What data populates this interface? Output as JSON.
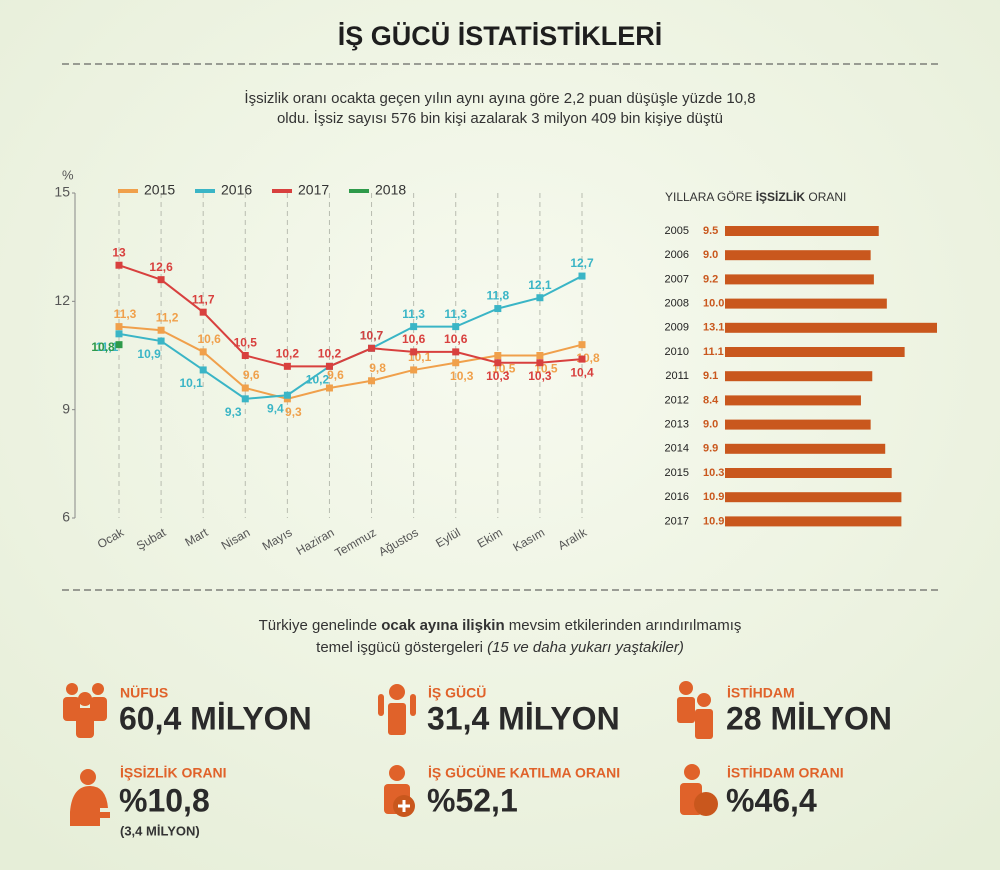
{
  "header": {
    "title": "İŞ GÜCÜ İSTATİSTİKLERİ",
    "subtitle_lines": [
      "İşsizlik oranı ocakta geçen yılın aynı ayına göre 2,2 puan düşüşle yüzde 10,8",
      "oldu. İşsiz sayısı 576 bin kişi azalarak 3 milyon 409 bin kişiye düştü"
    ]
  },
  "chart_data": [
    {
      "type": "line",
      "ylabel": "%",
      "categories": [
        "Ocak",
        "Şubat",
        "Mart",
        "Nisan",
        "Mayıs",
        "Haziran",
        "Temmuz",
        "Ağustos",
        "Eylül",
        "Ekim",
        "Kasım",
        "Aralık"
      ],
      "ylim": [
        6,
        15
      ],
      "yticks": [
        6,
        9,
        12,
        15
      ],
      "grid": true,
      "legend": "top",
      "series": [
        {
          "name": "2015",
          "color": "#f0a04b",
          "values": [
            11.3,
            11.2,
            10.6,
            9.6,
            9.3,
            9.6,
            9.8,
            10.1,
            10.3,
            10.5,
            10.5,
            10.8
          ],
          "value_labels": [
            "11,3",
            "11,2",
            "10,6",
            "9,6",
            "9,3",
            "9,6",
            "9,8",
            "10,1",
            "10,3",
            "10,5",
            "10,5",
            "10,8"
          ]
        },
        {
          "name": "2016",
          "color": "#3ab5c6",
          "values": [
            11.1,
            10.9,
            10.1,
            9.3,
            9.4,
            10.2,
            10.7,
            11.3,
            11.3,
            11.8,
            12.1,
            12.7
          ],
          "value_labels": [
            "11,1",
            "10,9",
            "10,1",
            "9,3",
            "9,4",
            "10,2",
            "10,7",
            "11,3",
            "11,3",
            "11,8",
            "12,1",
            "12,7"
          ]
        },
        {
          "name": "2017",
          "color": "#d8403e",
          "values": [
            13,
            12.6,
            11.7,
            10.5,
            10.2,
            10.2,
            10.7,
            10.6,
            10.6,
            10.3,
            10.3,
            10.4
          ],
          "value_labels": [
            "13",
            "12,6",
            "11,7",
            "10,5",
            "10,2",
            "10,2",
            "10,7",
            "10,6",
            "10,6",
            "10,3",
            "10,3",
            "10,4"
          ]
        },
        {
          "name": "2018",
          "color": "#2e9a4a",
          "values": [
            10.8,
            null,
            null,
            null,
            null,
            null,
            null,
            null,
            null,
            null,
            null,
            null
          ],
          "value_labels": [
            "10,8",
            null,
            null,
            null,
            null,
            null,
            null,
            null,
            null,
            null,
            null,
            null
          ]
        }
      ]
    },
    {
      "type": "hbar",
      "title_parts": [
        "YILLARA GÖRE ",
        "İŞSİZLİK",
        " ORANI"
      ],
      "categories": [
        "2005",
        "2006",
        "2007",
        "2008",
        "2009",
        "2010",
        "2011",
        "2012",
        "2013",
        "2014",
        "2015",
        "2016",
        "2017"
      ],
      "values": [
        9.5,
        9.0,
        9.2,
        10.0,
        13.1,
        11.1,
        9.1,
        8.4,
        9.0,
        9.9,
        10.3,
        10.9,
        10.9
      ],
      "value_labels": [
        "9.5",
        "9.0",
        "9.2",
        "10.0",
        "13.1",
        "11.1",
        "9.1",
        "8.4",
        "9.0",
        "9.9",
        "10.3",
        "10.9",
        "10.9"
      ],
      "color": "#c9571d"
    }
  ],
  "intro": {
    "line1": [
      "Türkiye genelinde ",
      "ocak ayına ilişkin",
      " mevsim etkilerinden arındırılmamış"
    ],
    "line2": [
      "temel işgücü göstergeleri ",
      "(15 ve daha yukarı yaştakiler)"
    ]
  },
  "stats": [
    {
      "label": "NÜFUS",
      "value": "60,4 MİLYON"
    },
    {
      "label": "İŞ GÜCÜ",
      "value": "31,4 MİLYON"
    },
    {
      "label": "İSTİHDAM",
      "value": "28 MİLYON"
    },
    {
      "label": "İŞSİZLİK ORANI",
      "value": "%10,8",
      "note": "(3,4 MİLYON)"
    },
    {
      "label": "İŞ GÜCÜNE KATILMA ORANI",
      "value": "%52,1"
    },
    {
      "label": "İSTİHDAM ORANI",
      "value": "%46,4"
    }
  ]
}
